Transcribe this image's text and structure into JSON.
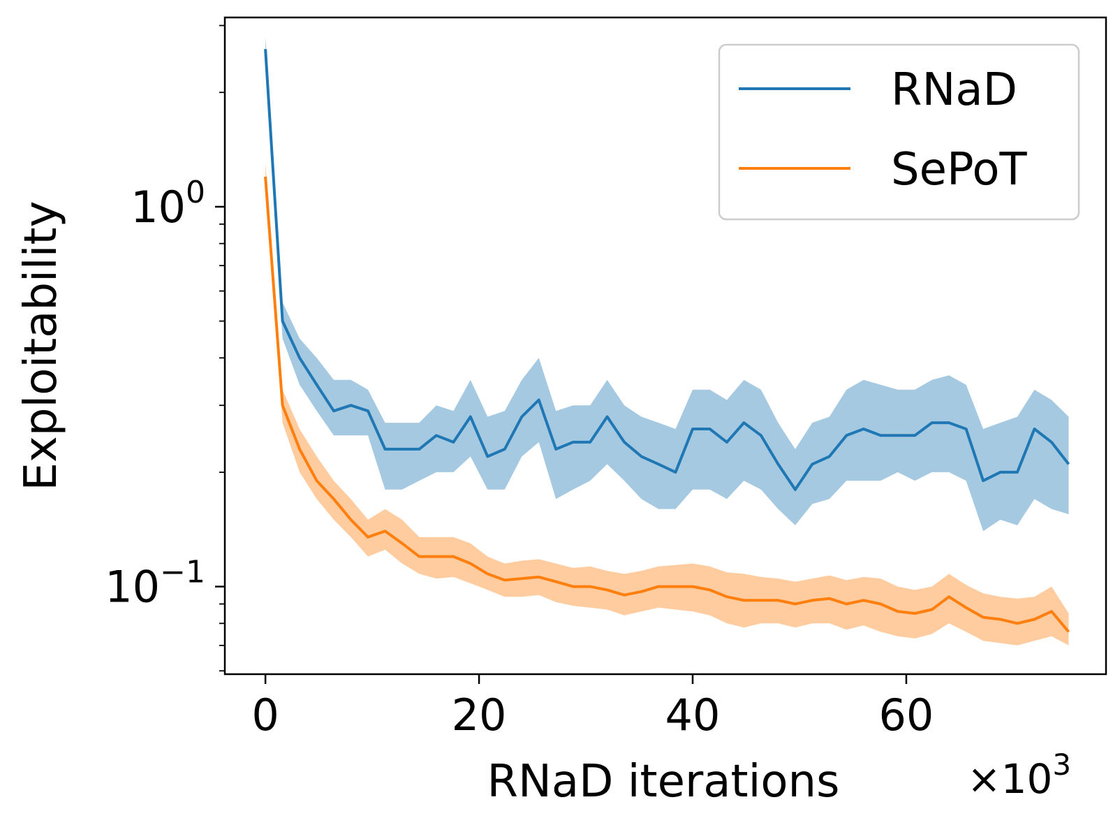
{
  "chart_data": {
    "type": "line",
    "title": "",
    "xlabel": "RNaD iterations",
    "ylabel": "Exploitability",
    "x_offset_label": "×10",
    "x_offset_exp": "3",
    "xlim": [
      -3.8,
      78.7
    ],
    "xticks": [
      0,
      20,
      40,
      60
    ],
    "xtick_labels": [
      "0",
      "20",
      "40",
      "60"
    ],
    "yscale": "log",
    "ylim": [
      0.0588,
      3.15
    ],
    "yticks": [
      {
        "value": 1,
        "base": "10",
        "exp": "0"
      },
      {
        "value": 0.1,
        "base": "10",
        "exp": "−1"
      }
    ],
    "grid": false,
    "legend_position": "top-right",
    "series": [
      {
        "name": "RNaD",
        "color": "#1f77b4",
        "band_color": "#1f77b4",
        "x": [
          0,
          1.6,
          3.2,
          4.8,
          6.4,
          8,
          9.6,
          11.2,
          12.8,
          14.4,
          16,
          17.6,
          19.2,
          20.8,
          22.4,
          24,
          25.6,
          27.2,
          28.8,
          30.4,
          32,
          33.6,
          35.2,
          36.8,
          38.4,
          40,
          41.6,
          43.2,
          44.8,
          46.4,
          48,
          49.6,
          51.2,
          52.8,
          54.4,
          56,
          57.6,
          59.2,
          60.8,
          62.4,
          64,
          65.6,
          67.2,
          68.8,
          70.4,
          72,
          73.6,
          75.2
        ],
        "mean": [
          2.6,
          0.5,
          0.4,
          0.34,
          0.29,
          0.3,
          0.29,
          0.23,
          0.23,
          0.23,
          0.25,
          0.24,
          0.28,
          0.22,
          0.23,
          0.28,
          0.31,
          0.23,
          0.24,
          0.24,
          0.28,
          0.24,
          0.22,
          0.21,
          0.2,
          0.26,
          0.26,
          0.24,
          0.27,
          0.25,
          0.21,
          0.18,
          0.21,
          0.22,
          0.25,
          0.26,
          0.25,
          0.25,
          0.25,
          0.27,
          0.27,
          0.26,
          0.19,
          0.2,
          0.2,
          0.26,
          0.24,
          0.21
        ],
        "low": [
          2.4,
          0.45,
          0.34,
          0.29,
          0.25,
          0.25,
          0.25,
          0.18,
          0.18,
          0.19,
          0.2,
          0.2,
          0.22,
          0.18,
          0.18,
          0.22,
          0.24,
          0.17,
          0.18,
          0.19,
          0.21,
          0.19,
          0.17,
          0.16,
          0.16,
          0.18,
          0.18,
          0.17,
          0.19,
          0.18,
          0.16,
          0.145,
          0.165,
          0.17,
          0.19,
          0.19,
          0.19,
          0.2,
          0.19,
          0.2,
          0.2,
          0.19,
          0.14,
          0.15,
          0.145,
          0.17,
          0.16,
          0.155
        ],
        "high": [
          2.8,
          0.56,
          0.45,
          0.4,
          0.35,
          0.35,
          0.33,
          0.27,
          0.27,
          0.27,
          0.3,
          0.29,
          0.35,
          0.28,
          0.29,
          0.35,
          0.4,
          0.29,
          0.3,
          0.3,
          0.35,
          0.3,
          0.28,
          0.27,
          0.26,
          0.33,
          0.33,
          0.31,
          0.35,
          0.33,
          0.27,
          0.23,
          0.27,
          0.28,
          0.33,
          0.35,
          0.34,
          0.33,
          0.33,
          0.35,
          0.36,
          0.34,
          0.26,
          0.27,
          0.28,
          0.33,
          0.31,
          0.28
        ]
      },
      {
        "name": "SePoT",
        "color": "#ff7f0e",
        "band_color": "#ff7f0e",
        "x": [
          0,
          1.6,
          3.2,
          4.8,
          6.4,
          8,
          9.6,
          11.2,
          12.8,
          14.4,
          16,
          17.6,
          19.2,
          20.8,
          22.4,
          24,
          25.6,
          27.2,
          28.8,
          30.4,
          32,
          33.6,
          35.2,
          36.8,
          38.4,
          40,
          41.6,
          43.2,
          44.8,
          46.4,
          48,
          49.6,
          51.2,
          52.8,
          54.4,
          56,
          57.6,
          59.2,
          60.8,
          62.4,
          64,
          65.6,
          67.2,
          68.8,
          70.4,
          72,
          73.6,
          75.2
        ],
        "mean": [
          1.2,
          0.3,
          0.23,
          0.19,
          0.17,
          0.15,
          0.135,
          0.14,
          0.13,
          0.12,
          0.12,
          0.12,
          0.115,
          0.108,
          0.104,
          0.105,
          0.106,
          0.103,
          0.1,
          0.1,
          0.098,
          0.095,
          0.097,
          0.1,
          0.1,
          0.1,
          0.098,
          0.094,
          0.092,
          0.092,
          0.092,
          0.09,
          0.092,
          0.093,
          0.09,
          0.092,
          0.09,
          0.086,
          0.085,
          0.087,
          0.094,
          0.088,
          0.083,
          0.082,
          0.08,
          0.082,
          0.086,
          0.076
        ],
        "low": [
          1.1,
          0.27,
          0.2,
          0.17,
          0.15,
          0.135,
          0.12,
          0.125,
          0.115,
          0.108,
          0.105,
          0.106,
          0.102,
          0.098,
          0.094,
          0.094,
          0.095,
          0.091,
          0.089,
          0.088,
          0.087,
          0.084,
          0.086,
          0.088,
          0.087,
          0.086,
          0.084,
          0.08,
          0.078,
          0.08,
          0.08,
          0.078,
          0.08,
          0.08,
          0.077,
          0.079,
          0.076,
          0.074,
          0.073,
          0.075,
          0.08,
          0.076,
          0.072,
          0.071,
          0.07,
          0.072,
          0.074,
          0.07
        ],
        "high": [
          1.3,
          0.33,
          0.26,
          0.22,
          0.19,
          0.17,
          0.15,
          0.16,
          0.15,
          0.135,
          0.135,
          0.135,
          0.13,
          0.12,
          0.115,
          0.117,
          0.118,
          0.115,
          0.112,
          0.113,
          0.11,
          0.108,
          0.11,
          0.113,
          0.114,
          0.115,
          0.113,
          0.109,
          0.108,
          0.106,
          0.105,
          0.103,
          0.105,
          0.107,
          0.104,
          0.106,
          0.105,
          0.1,
          0.098,
          0.1,
          0.108,
          0.101,
          0.096,
          0.094,
          0.093,
          0.094,
          0.1,
          0.085
        ]
      }
    ]
  }
}
